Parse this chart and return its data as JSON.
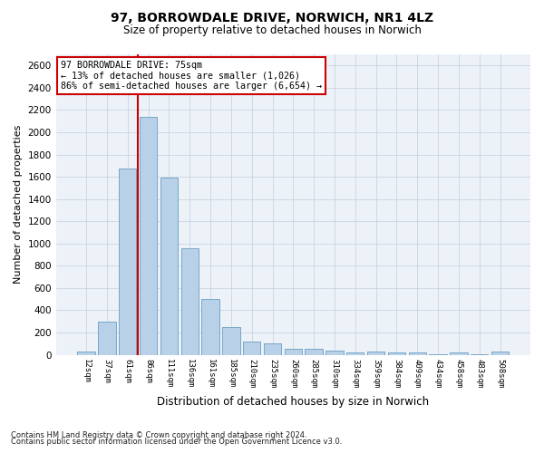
{
  "title1": "97, BORROWDALE DRIVE, NORWICH, NR1 4LZ",
  "title2": "Size of property relative to detached houses in Norwich",
  "xlabel": "Distribution of detached houses by size in Norwich",
  "ylabel": "Number of detached properties",
  "categories": [
    "12sqm",
    "37sqm",
    "61sqm",
    "86sqm",
    "111sqm",
    "136sqm",
    "161sqm",
    "185sqm",
    "210sqm",
    "235sqm",
    "260sqm",
    "285sqm",
    "310sqm",
    "334sqm",
    "359sqm",
    "384sqm",
    "409sqm",
    "434sqm",
    "458sqm",
    "483sqm",
    "508sqm"
  ],
  "values": [
    25,
    300,
    1670,
    2140,
    1590,
    960,
    505,
    248,
    120,
    100,
    50,
    50,
    35,
    20,
    30,
    20,
    20,
    5,
    20,
    5,
    25
  ],
  "bar_color": "#b8d0e8",
  "bar_edge_color": "#6a9fc0",
  "vline_color": "#cc0000",
  "annotation_text": "97 BORROWDALE DRIVE: 75sqm\n← 13% of detached houses are smaller (1,026)\n86% of semi-detached houses are larger (6,654) →",
  "annotation_box_color": "#ffffff",
  "annotation_box_edge": "#cc0000",
  "footnote1": "Contains HM Land Registry data © Crown copyright and database right 2024.",
  "footnote2": "Contains public sector information licensed under the Open Government Licence v3.0.",
  "plot_bg_color": "#edf2f9",
  "ylim": [
    0,
    2700
  ],
  "yticks": [
    0,
    200,
    400,
    600,
    800,
    1000,
    1200,
    1400,
    1600,
    1800,
    2000,
    2200,
    2400,
    2600
  ]
}
